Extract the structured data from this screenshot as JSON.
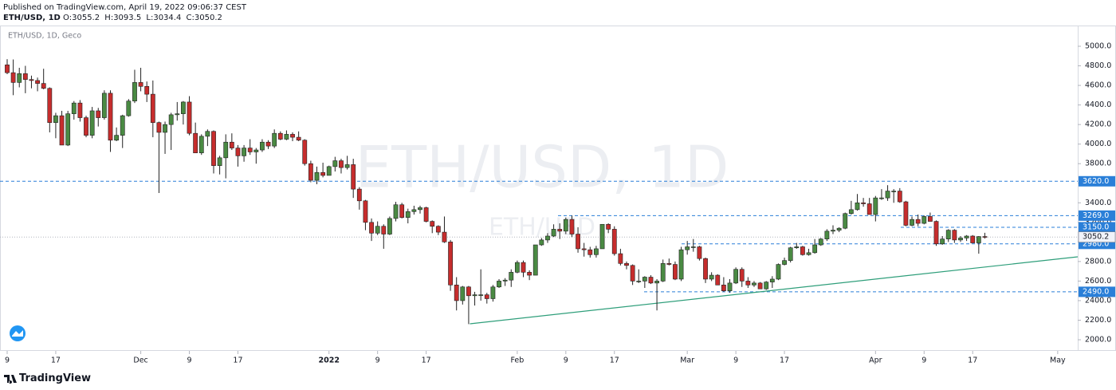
{
  "header": {
    "published": "Published on TradingView.com, April 19, 2022 09:06:37 CEST",
    "symbol": "ETH/USD, 1D",
    "ohlc_labels": [
      "O:",
      "H:",
      "L:",
      "C:"
    ]
  },
  "chart_data": {
    "type": "candlestick",
    "label": "ETH/USD, 1D, Geco",
    "watermark": "ETH/USD, 1D",
    "watermark_sub": "ETH/USD",
    "ohlc": [
      [
        4810,
        4868,
        4715,
        4730
      ],
      [
        4730,
        4865,
        4500,
        4630
      ],
      [
        4630,
        4780,
        4580,
        4720
      ],
      [
        4720,
        4800,
        4520,
        4660
      ],
      [
        4660,
        4700,
        4570,
        4650
      ],
      [
        4650,
        4680,
        4540,
        4620
      ],
      [
        4620,
        4770,
        4560,
        4570
      ],
      [
        4570,
        4580,
        4120,
        4220
      ],
      [
        4220,
        4320,
        4060,
        4290
      ],
      [
        4290,
        4340,
        3990,
        3990
      ],
      [
        3990,
        4340,
        3980,
        4310
      ],
      [
        4310,
        4440,
        4250,
        4420
      ],
      [
        4420,
        4450,
        4230,
        4270
      ],
      [
        4270,
        4290,
        4070,
        4090
      ],
      [
        4090,
        4380,
        4060,
        4340
      ],
      [
        4340,
        4370,
        4180,
        4270
      ],
      [
        4270,
        4550,
        4250,
        4520
      ],
      [
        4520,
        4550,
        3920,
        4040
      ],
      [
        4040,
        4170,
        4030,
        4090
      ],
      [
        4090,
        4300,
        3960,
        4290
      ],
      [
        4290,
        4460,
        4280,
        4440
      ],
      [
        4440,
        4760,
        4420,
        4630
      ],
      [
        4630,
        4780,
        4540,
        4590
      ],
      [
        4590,
        4640,
        4430,
        4510
      ],
      [
        4510,
        4650,
        4070,
        4220
      ],
      [
        4220,
        4230,
        3500,
        4120
      ],
      [
        4120,
        4230,
        3900,
        4200
      ],
      [
        4200,
        4320,
        3940,
        4300
      ],
      [
        4300,
        4430,
        4240,
        4310
      ],
      [
        4310,
        4440,
        4200,
        4430
      ],
      [
        4430,
        4490,
        4090,
        4110
      ],
      [
        4110,
        4220,
        3910,
        3910
      ],
      [
        3910,
        4100,
        3890,
        4080
      ],
      [
        4080,
        4150,
        3980,
        4130
      ],
      [
        4130,
        4140,
        3700,
        3780
      ],
      [
        3780,
        3880,
        3690,
        3860
      ],
      [
        3860,
        4100,
        3650,
        4020
      ],
      [
        4020,
        4110,
        3940,
        3960
      ],
      [
        3960,
        3990,
        3770,
        3880
      ],
      [
        3880,
        3990,
        3820,
        3960
      ],
      [
        3960,
        4050,
        3890,
        3920
      ],
      [
        3920,
        3960,
        3800,
        3940
      ],
      [
        3940,
        4050,
        3920,
        4020
      ],
      [
        4020,
        4040,
        3950,
        3980
      ],
      [
        3980,
        4150,
        3960,
        4110
      ],
      [
        4110,
        4130,
        4040,
        4050
      ],
      [
        4050,
        4140,
        4040,
        4100
      ],
      [
        4100,
        4120,
        4030,
        4070
      ],
      [
        4070,
        4130,
        4030,
        4040
      ],
      [
        4040,
        4050,
        3780,
        3800
      ],
      [
        3800,
        3830,
        3610,
        3630
      ],
      [
        3630,
        3770,
        3590,
        3710
      ],
      [
        3710,
        3810,
        3660,
        3680
      ],
      [
        3680,
        3780,
        3680,
        3770
      ],
      [
        3770,
        3870,
        3720,
        3830
      ],
      [
        3830,
        3850,
        3700,
        3760
      ],
      [
        3760,
        3880,
        3740,
        3790
      ],
      [
        3790,
        3850,
        3450,
        3540
      ],
      [
        3540,
        3560,
        3330,
        3420
      ],
      [
        3420,
        3430,
        3120,
        3200
      ],
      [
        3200,
        3240,
        3010,
        3090
      ],
      [
        3090,
        3210,
        3070,
        3160
      ],
      [
        3160,
        3180,
        2930,
        3080
      ],
      [
        3080,
        3260,
        3070,
        3240
      ],
      [
        3240,
        3410,
        3210,
        3380
      ],
      [
        3380,
        3400,
        3240,
        3250
      ],
      [
        3250,
        3340,
        3190,
        3310
      ],
      [
        3310,
        3370,
        3280,
        3330
      ],
      [
        3330,
        3370,
        3290,
        3350
      ],
      [
        3350,
        3360,
        3200,
        3210
      ],
      [
        3210,
        3220,
        3090,
        3160
      ],
      [
        3160,
        3170,
        3070,
        3100
      ],
      [
        3100,
        3260,
        2990,
        3000
      ],
      [
        3000,
        3020,
        2500,
        2560
      ],
      [
        2560,
        2640,
        2300,
        2400
      ],
      [
        2400,
        2550,
        2360,
        2540
      ],
      [
        2540,
        2550,
        2160,
        2450
      ],
      [
        2450,
        2490,
        2350,
        2460
      ],
      [
        2460,
        2720,
        2400,
        2460
      ],
      [
        2460,
        2480,
        2370,
        2420
      ],
      [
        2420,
        2560,
        2390,
        2540
      ],
      [
        2540,
        2620,
        2530,
        2600
      ],
      [
        2600,
        2630,
        2550,
        2610
      ],
      [
        2610,
        2720,
        2540,
        2690
      ],
      [
        2690,
        2810,
        2680,
        2790
      ],
      [
        2790,
        2810,
        2640,
        2690
      ],
      [
        2690,
        2710,
        2610,
        2660
      ],
      [
        2660,
        2970,
        2660,
        2970
      ],
      [
        2970,
        3040,
        2960,
        3020
      ],
      [
        3020,
        3090,
        2990,
        3060
      ],
      [
        3060,
        3180,
        3050,
        3130
      ],
      [
        3130,
        3190,
        3030,
        3110
      ],
      [
        3110,
        3250,
        3080,
        3230
      ],
      [
        3230,
        3270,
        3050,
        3080
      ],
      [
        3080,
        3150,
        2890,
        2930
      ],
      [
        2930,
        2990,
        2850,
        2920
      ],
      [
        2920,
        2950,
        2840,
        2870
      ],
      [
        2870,
        2960,
        2840,
        2930
      ],
      [
        2930,
        3170,
        2930,
        3180
      ],
      [
        3180,
        3190,
        3090,
        3130
      ],
      [
        3130,
        3160,
        2860,
        2880
      ],
      [
        2880,
        2930,
        2760,
        2780
      ],
      [
        2780,
        2800,
        2720,
        2760
      ],
      [
        2760,
        2770,
        2560,
        2600
      ],
      [
        2600,
        2720,
        2580,
        2600
      ],
      [
        2600,
        2650,
        2530,
        2640
      ],
      [
        2640,
        2660,
        2570,
        2580
      ],
      [
        2580,
        2620,
        2300,
        2600
      ],
      [
        2600,
        2820,
        2590,
        2780
      ],
      [
        2780,
        2830,
        2760,
        2770
      ],
      [
        2770,
        2800,
        2610,
        2620
      ],
      [
        2620,
        2950,
        2600,
        2920
      ],
      [
        2920,
        3010,
        2870,
        2950
      ],
      [
        2950,
        3030,
        2900,
        2950
      ],
      [
        2950,
        2960,
        2810,
        2830
      ],
      [
        2830,
        2840,
        2580,
        2620
      ],
      [
        2620,
        2690,
        2600,
        2660
      ],
      [
        2660,
        2670,
        2560,
        2560
      ],
      [
        2560,
        2640,
        2490,
        2500
      ],
      [
        2500,
        2620,
        2480,
        2580
      ],
      [
        2580,
        2740,
        2570,
        2720
      ],
      [
        2720,
        2740,
        2540,
        2600
      ],
      [
        2600,
        2640,
        2530,
        2560
      ],
      [
        2560,
        2600,
        2540,
        2580
      ],
      [
        2580,
        2590,
        2520,
        2520
      ],
      [
        2520,
        2600,
        2510,
        2590
      ],
      [
        2590,
        2650,
        2530,
        2620
      ],
      [
        2620,
        2780,
        2610,
        2770
      ],
      [
        2770,
        2840,
        2760,
        2810
      ],
      [
        2810,
        2950,
        2790,
        2940
      ],
      [
        2940,
        2990,
        2930,
        2950
      ],
      [
        2950,
        2960,
        2860,
        2870
      ],
      [
        2870,
        2930,
        2860,
        2890
      ],
      [
        2890,
        3030,
        2880,
        2970
      ],
      [
        2970,
        3040,
        2960,
        3030
      ],
      [
        3030,
        3130,
        3010,
        3110
      ],
      [
        3110,
        3170,
        3080,
        3120
      ],
      [
        3120,
        3150,
        3100,
        3140
      ],
      [
        3140,
        3300,
        3130,
        3290
      ],
      [
        3290,
        3420,
        3280,
        3330
      ],
      [
        3330,
        3490,
        3320,
        3400
      ],
      [
        3400,
        3450,
        3360,
        3390
      ],
      [
        3390,
        3450,
        3280,
        3280
      ],
      [
        3280,
        3470,
        3210,
        3450
      ],
      [
        3450,
        3540,
        3430,
        3450
      ],
      [
        3450,
        3580,
        3420,
        3520
      ],
      [
        3520,
        3540,
        3400,
        3520
      ],
      [
        3520,
        3550,
        3400,
        3410
      ],
      [
        3410,
        3420,
        3160,
        3170
      ],
      [
        3170,
        3260,
        3160,
        3230
      ],
      [
        3230,
        3280,
        3160,
        3190
      ],
      [
        3190,
        3270,
        3180,
        3260
      ],
      [
        3260,
        3300,
        3210,
        3210
      ],
      [
        3210,
        3220,
        2960,
        2980
      ],
      [
        2980,
        3060,
        2970,
        3030
      ],
      [
        3030,
        3130,
        3000,
        3120
      ],
      [
        3120,
        3130,
        2990,
        3020
      ],
      [
        3020,
        3060,
        3000,
        3040
      ],
      [
        3040,
        3070,
        3010,
        3060
      ],
      [
        3060,
        3070,
        2990,
        2990
      ],
      [
        2990,
        3060,
        2880,
        3055
      ],
      [
        3055.2,
        3093.5,
        3034.4,
        3050.2
      ]
    ],
    "up_color": "#4a8a43",
    "down_color": "#c62d2d",
    "wick_color": "#222222",
    "xlim": [
      -1.18,
      176.3
    ],
    "xticks": [
      {
        "value": 0,
        "label": "9"
      },
      {
        "value": 8,
        "label": "17"
      },
      {
        "value": 22,
        "label": "Dec"
      },
      {
        "value": 30,
        "label": "9"
      },
      {
        "value": 38,
        "label": "17"
      },
      {
        "value": 53,
        "label": "2022"
      },
      {
        "value": 61,
        "label": "9"
      },
      {
        "value": 69,
        "label": "17"
      },
      {
        "value": 84,
        "label": "Feb"
      },
      {
        "value": 92,
        "label": "9"
      },
      {
        "value": 100,
        "label": "17"
      },
      {
        "value": 112,
        "label": "Mar"
      },
      {
        "value": 120,
        "label": "9"
      },
      {
        "value": 128,
        "label": "17"
      },
      {
        "value": 143,
        "label": "Apr"
      },
      {
        "value": 151,
        "label": "9"
      },
      {
        "value": 159,
        "label": "17"
      },
      {
        "value": 173,
        "label": "May"
      }
    ],
    "ylim": [
      1886,
      5212
    ],
    "yticks": [
      {
        "value": 2000,
        "label": "2000.0"
      },
      {
        "value": 2200,
        "label": "2200.0"
      },
      {
        "value": 2400,
        "label": "2400.0"
      },
      {
        "value": 2600,
        "label": "2600.0"
      },
      {
        "value": 2800,
        "label": "2800.0"
      },
      {
        "value": 3000,
        "label": "3000.0"
      },
      {
        "value": 3200,
        "label": "3200.0"
      },
      {
        "value": 3400,
        "label": "3400.0"
      },
      {
        "value": 3600,
        "label": "3600.0"
      },
      {
        "value": 3800,
        "label": "3800.0"
      },
      {
        "value": 4000,
        "label": "4000.0"
      },
      {
        "value": 4200,
        "label": "4200.0"
      },
      {
        "value": 4400,
        "label": "4400.0"
      },
      {
        "value": 4600,
        "label": "4600.0"
      },
      {
        "value": 4800,
        "label": "4800.0"
      },
      {
        "value": 5000,
        "label": "5000.0"
      }
    ],
    "levels": [
      {
        "value": 3620,
        "label": "3620.0"
      },
      {
        "value": 3269,
        "label": "3269.0"
      },
      {
        "value": 3150,
        "label": "3150.0"
      },
      {
        "value": 2980,
        "label": "2980.0"
      },
      {
        "value": 2490,
        "label": "2490.0"
      }
    ],
    "level_color": "#2a7fd8",
    "last_price": {
      "value": 3050.2,
      "label": "3050.2"
    },
    "trendline": {
      "x": [
        76.2,
        176.3
      ],
      "y": [
        2163,
        2848
      ],
      "color": "#2e9e7a"
    },
    "grid": false
  },
  "footer": {
    "brand": "TradingView"
  }
}
